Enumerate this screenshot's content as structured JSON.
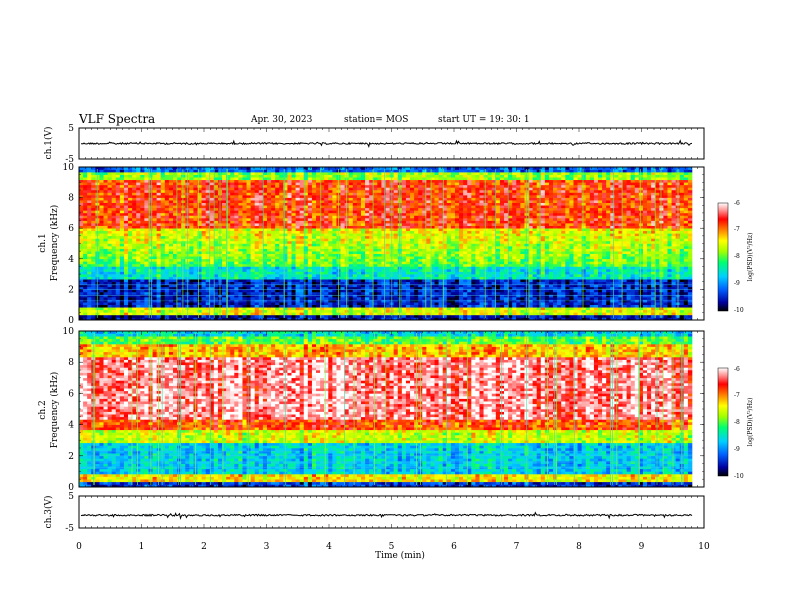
{
  "header": {
    "title": "VLF Spectra",
    "date": "Apr. 30, 2023",
    "station": "station= MOS",
    "start": "start  UT =   19: 30: 1"
  },
  "chart_data": [
    {
      "type": "line",
      "name": "ch1-waveform",
      "ylabel": "ch.1(V)",
      "ylim": [
        -5,
        5
      ],
      "y_ticks": [
        "5",
        "-5"
      ],
      "baseline_value": 0,
      "xlim": [
        0,
        10
      ]
    },
    {
      "type": "heatmap",
      "name": "ch1-spectrogram",
      "ylabel": "ch.1\nFrequency (kHz)",
      "ylim": [
        0,
        10
      ],
      "y_ticks": [
        "0",
        "2",
        "4",
        "6",
        "8",
        "10"
      ],
      "xlim": [
        0,
        10
      ],
      "colorbar": {
        "label": "log(PSD)(V²/Hz)",
        "range": [
          -10,
          -6
        ],
        "ticks": [
          "-6",
          "-7",
          "-8",
          "-9",
          "-10"
        ]
      }
    },
    {
      "type": "heatmap",
      "name": "ch2-spectrogram",
      "ylabel": "ch.2\nFrequency (kHz)",
      "ylim": [
        0,
        10
      ],
      "y_ticks": [
        "0",
        "2",
        "4",
        "6",
        "8",
        "10"
      ],
      "xlim": [
        0,
        10
      ],
      "colorbar": {
        "label": "log(PSD)(V²/Hz)",
        "range": [
          -10,
          -6
        ],
        "ticks": [
          "-6",
          "-7",
          "-8",
          "-9",
          "-10"
        ]
      }
    },
    {
      "type": "line",
      "name": "ch3-waveform",
      "ylabel": "ch.3(V)",
      "ylim": [
        -5,
        5
      ],
      "y_ticks": [
        "5",
        "-5"
      ],
      "baseline_value": -1,
      "xlim": [
        0,
        10
      ]
    }
  ],
  "x_axis": {
    "label": "Time  (min)",
    "ticks": [
      "0",
      "1",
      "2",
      "3",
      "4",
      "5",
      "6",
      "7",
      "8",
      "9",
      "10"
    ],
    "range": [
      0,
      10
    ]
  },
  "ch1_ylabel_top": "ch.1",
  "ch1_ylabel_bottom": "Frequency (kHz)",
  "ch2_ylabel_top": "ch.2",
  "ch2_ylabel_bottom": "Frequency (kHz)",
  "colorbar_label": "log(PSD)(V²/Hz)",
  "colorbar_ticks": [
    "-6",
    "-7",
    "-8",
    "-9",
    "-10"
  ],
  "wave_ticks": [
    "5",
    "-5"
  ],
  "freq_ticks": [
    "0",
    "2",
    "4",
    "6",
    "8",
    "10"
  ],
  "ch1_wave_label": "ch.1(V)",
  "ch3_wave_label": "ch.3(V)"
}
